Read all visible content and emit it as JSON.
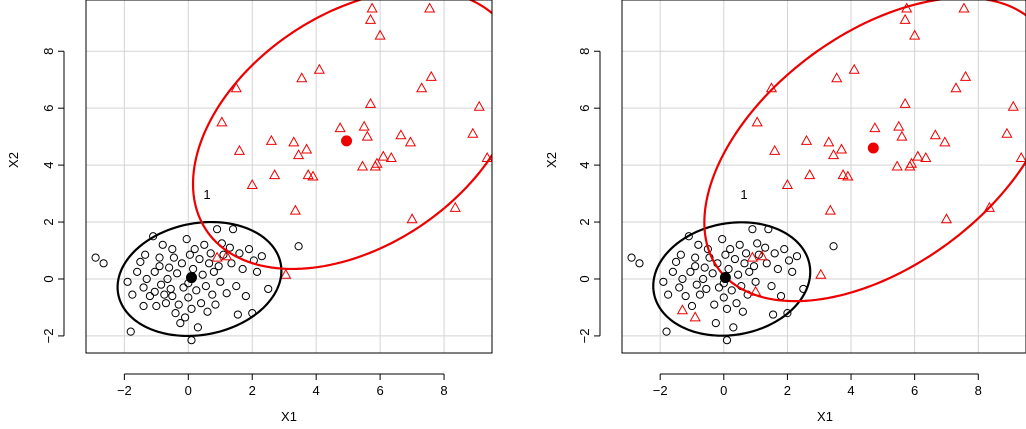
{
  "chart_data": [
    {
      "type": "scatter",
      "xlabel": "X1",
      "ylabel": "X2",
      "xlim": [
        -3.2,
        9.5
      ],
      "ylim": [
        -2.6,
        9.8
      ],
      "xticks": [
        -2,
        0,
        2,
        4,
        6,
        8
      ],
      "yticks": [
        -2,
        0,
        2,
        4,
        6,
        8
      ],
      "grid": true,
      "annotation": "1",
      "colors": {
        "cluster1": "#000000",
        "cluster2": "#ee0000",
        "grid": "#d3d3d3"
      },
      "centers": [
        {
          "x": 0.1,
          "y": 0.05,
          "color": "#000000"
        },
        {
          "x": 4.95,
          "y": 4.85,
          "color": "#ee0000"
        }
      ],
      "ellipses": [
        {
          "cx": 0.35,
          "cy": 0.0,
          "rx": 2.6,
          "ry": 1.95,
          "angle": 15,
          "color": "#000000"
        },
        {
          "cx": 5.25,
          "cy": 5.25,
          "rx": 5.9,
          "ry": 3.9,
          "angle": 42,
          "color": "#ee0000"
        }
      ],
      "series": [
        {
          "marker": "circle",
          "color": "#000000",
          "points": [
            [
              -2.9,
              0.75
            ],
            [
              -2.65,
              0.55
            ],
            [
              -1.9,
              -0.1
            ],
            [
              -1.8,
              -1.85
            ],
            [
              -1.75,
              -0.55
            ],
            [
              -1.6,
              0.25
            ],
            [
              -1.5,
              0.6
            ],
            [
              -1.4,
              -0.3
            ],
            [
              -1.4,
              -0.95
            ],
            [
              -1.35,
              0.85
            ],
            [
              -1.3,
              0.0
            ],
            [
              -1.2,
              -0.6
            ],
            [
              -1.1,
              1.5
            ],
            [
              -1.05,
              0.25
            ],
            [
              -1.05,
              -0.45
            ],
            [
              -1.0,
              -0.95
            ],
            [
              -0.9,
              0.75
            ],
            [
              -0.9,
              0.45
            ],
            [
              -0.85,
              -0.2
            ],
            [
              -0.8,
              1.2
            ],
            [
              -0.75,
              -0.55
            ],
            [
              -0.7,
              -0.85
            ],
            [
              -0.65,
              0.0
            ],
            [
              -0.6,
              0.4
            ],
            [
              -0.55,
              -0.35
            ],
            [
              -0.5,
              1.05
            ],
            [
              -0.5,
              -0.6
            ],
            [
              -0.45,
              0.75
            ],
            [
              -0.4,
              -1.2
            ],
            [
              -0.35,
              0.2
            ],
            [
              -0.3,
              -0.9
            ],
            [
              -0.25,
              -1.55
            ],
            [
              -0.2,
              0.55
            ],
            [
              -0.15,
              -0.3
            ],
            [
              -0.1,
              -1.35
            ],
            [
              -0.05,
              1.4
            ],
            [
              0.0,
              -0.15
            ],
            [
              0.0,
              -0.65
            ],
            [
              0.05,
              0.85
            ],
            [
              0.1,
              -2.15
            ],
            [
              0.1,
              -1.05
            ],
            [
              0.15,
              0.35
            ],
            [
              0.2,
              1.05
            ],
            [
              0.25,
              -0.4
            ],
            [
              0.3,
              -1.7
            ],
            [
              0.35,
              0.7
            ],
            [
              0.4,
              -0.85
            ],
            [
              0.45,
              0.15
            ],
            [
              0.5,
              1.2
            ],
            [
              0.55,
              -0.25
            ],
            [
              0.6,
              -1.15
            ],
            [
              0.65,
              0.55
            ],
            [
              0.7,
              0.9
            ],
            [
              0.75,
              -0.55
            ],
            [
              0.8,
              0.25
            ],
            [
              0.85,
              -0.9
            ],
            [
              0.9,
              1.75
            ],
            [
              0.95,
              0.45
            ],
            [
              1.0,
              -0.1
            ],
            [
              1.05,
              1.25
            ],
            [
              1.1,
              0.85
            ],
            [
              1.2,
              -0.5
            ],
            [
              1.3,
              1.1
            ],
            [
              1.35,
              0.55
            ],
            [
              1.4,
              1.75
            ],
            [
              1.5,
              -0.25
            ],
            [
              1.55,
              -1.25
            ],
            [
              1.6,
              0.9
            ],
            [
              1.7,
              0.35
            ],
            [
              1.8,
              -0.6
            ],
            [
              1.9,
              1.05
            ],
            [
              2.0,
              -1.2
            ],
            [
              2.05,
              0.65
            ],
            [
              2.15,
              0.25
            ],
            [
              2.3,
              0.8
            ],
            [
              2.5,
              -0.35
            ],
            [
              3.45,
              1.15
            ]
          ]
        },
        {
          "marker": "triangle",
          "color": "#ee0000",
          "points": [
            [
              0.9,
              0.75
            ],
            [
              1.2,
              0.8
            ],
            [
              1.05,
              5.5
            ],
            [
              1.5,
              6.7
            ],
            [
              1.6,
              4.5
            ],
            [
              2.0,
              3.3
            ],
            [
              2.6,
              4.85
            ],
            [
              2.7,
              3.65
            ],
            [
              3.05,
              0.15
            ],
            [
              3.3,
              4.8
            ],
            [
              3.35,
              2.4
            ],
            [
              3.45,
              4.35
            ],
            [
              3.55,
              7.05
            ],
            [
              3.7,
              4.55
            ],
            [
              3.75,
              3.65
            ],
            [
              3.9,
              3.6
            ],
            [
              4.1,
              7.35
            ],
            [
              4.75,
              5.3
            ],
            [
              5.45,
              3.95
            ],
            [
              5.5,
              5.35
            ],
            [
              5.6,
              5.0
            ],
            [
              5.7,
              6.15
            ],
            [
              5.7,
              9.1
            ],
            [
              5.75,
              9.5
            ],
            [
              5.85,
              3.95
            ],
            [
              5.9,
              4.05
            ],
            [
              6.0,
              8.55
            ],
            [
              6.1,
              4.3
            ],
            [
              6.35,
              4.25
            ],
            [
              6.65,
              5.05
            ],
            [
              6.95,
              4.8
            ],
            [
              7.0,
              2.1
            ],
            [
              7.3,
              6.7
            ],
            [
              7.55,
              9.5
            ],
            [
              7.6,
              7.1
            ],
            [
              8.35,
              2.5
            ],
            [
              8.9,
              5.1
            ],
            [
              9.1,
              6.05
            ],
            [
              9.35,
              4.25
            ]
          ]
        }
      ]
    },
    {
      "type": "scatter",
      "xlabel": "X1",
      "ylabel": "X2",
      "xlim": [
        -3.2,
        9.5
      ],
      "ylim": [
        -2.6,
        9.8
      ],
      "xticks": [
        -2,
        0,
        2,
        4,
        6,
        8
      ],
      "yticks": [
        -2,
        0,
        2,
        4,
        6,
        8
      ],
      "grid": true,
      "annotation": "1",
      "colors": {
        "cluster1": "#000000",
        "cluster2": "#ee0000",
        "grid": "#d3d3d3"
      },
      "centers": [
        {
          "x": 0.05,
          "y": 0.05,
          "color": "#000000"
        },
        {
          "x": 4.7,
          "y": 4.6,
          "color": "#ee0000"
        }
      ],
      "ellipses": [
        {
          "cx": 0.25,
          "cy": 0.0,
          "rx": 2.5,
          "ry": 1.95,
          "angle": 15,
          "color": "#000000"
        },
        {
          "cx": 4.9,
          "cy": 4.55,
          "rx": 6.6,
          "ry": 3.9,
          "angle": 43,
          "color": "#ee0000"
        }
      ],
      "series": [
        {
          "marker": "circle",
          "color": "#000000",
          "points": [
            [
              -2.9,
              0.75
            ],
            [
              -2.65,
              0.55
            ],
            [
              -1.9,
              -0.1
            ],
            [
              -1.8,
              -1.85
            ],
            [
              -1.75,
              -0.55
            ],
            [
              -1.6,
              0.25
            ],
            [
              -1.5,
              0.6
            ],
            [
              -1.4,
              -0.3
            ],
            [
              -1.35,
              0.85
            ],
            [
              -1.3,
              0.0
            ],
            [
              -1.2,
              -0.6
            ],
            [
              -1.1,
              1.5
            ],
            [
              -1.05,
              0.25
            ],
            [
              -1.0,
              -0.95
            ],
            [
              -0.9,
              0.75
            ],
            [
              -0.9,
              0.45
            ],
            [
              -0.85,
              -0.2
            ],
            [
              -0.8,
              1.2
            ],
            [
              -0.75,
              -0.55
            ],
            [
              -0.65,
              0.0
            ],
            [
              -0.6,
              0.4
            ],
            [
              -0.55,
              -0.35
            ],
            [
              -0.5,
              1.05
            ],
            [
              -0.45,
              0.75
            ],
            [
              -0.35,
              0.2
            ],
            [
              -0.3,
              -0.9
            ],
            [
              -0.25,
              -1.55
            ],
            [
              -0.2,
              0.55
            ],
            [
              -0.15,
              -0.3
            ],
            [
              -0.05,
              1.4
            ],
            [
              0.0,
              -0.15
            ],
            [
              0.0,
              -0.65
            ],
            [
              0.05,
              0.85
            ],
            [
              0.1,
              -2.15
            ],
            [
              0.1,
              -1.05
            ],
            [
              0.15,
              0.35
            ],
            [
              0.2,
              1.05
            ],
            [
              0.25,
              -0.4
            ],
            [
              0.3,
              -1.7
            ],
            [
              0.35,
              0.7
            ],
            [
              0.4,
              -0.85
            ],
            [
              0.45,
              0.15
            ],
            [
              0.5,
              1.2
            ],
            [
              0.55,
              -0.25
            ],
            [
              0.6,
              -1.15
            ],
            [
              0.65,
              0.55
            ],
            [
              0.7,
              0.9
            ],
            [
              0.75,
              -0.55
            ],
            [
              0.8,
              0.25
            ],
            [
              0.9,
              1.75
            ],
            [
              0.95,
              0.45
            ],
            [
              1.0,
              -0.1
            ],
            [
              1.05,
              1.25
            ],
            [
              1.1,
              0.85
            ],
            [
              1.3,
              1.1
            ],
            [
              1.35,
              0.55
            ],
            [
              1.4,
              1.75
            ],
            [
              1.5,
              -0.25
            ],
            [
              1.55,
              -1.25
            ],
            [
              1.6,
              0.9
            ],
            [
              1.7,
              0.35
            ],
            [
              1.8,
              -0.6
            ],
            [
              1.9,
              1.05
            ],
            [
              2.0,
              -1.2
            ],
            [
              2.05,
              0.65
            ],
            [
              2.15,
              0.25
            ],
            [
              2.3,
              0.8
            ],
            [
              2.5,
              -0.35
            ],
            [
              3.45,
              1.15
            ]
          ]
        },
        {
          "marker": "triangle",
          "color": "#ee0000",
          "points": [
            [
              -1.3,
              -1.1
            ],
            [
              -0.9,
              -1.35
            ],
            [
              0.9,
              0.75
            ],
            [
              1.0,
              -0.45
            ],
            [
              1.2,
              0.8
            ],
            [
              1.05,
              5.5
            ],
            [
              1.5,
              6.7
            ],
            [
              1.6,
              4.5
            ],
            [
              2.0,
              3.3
            ],
            [
              2.6,
              4.85
            ],
            [
              2.7,
              3.65
            ],
            [
              3.05,
              0.15
            ],
            [
              3.3,
              4.8
            ],
            [
              3.35,
              2.4
            ],
            [
              3.45,
              4.35
            ],
            [
              3.55,
              7.05
            ],
            [
              3.7,
              4.55
            ],
            [
              3.75,
              3.65
            ],
            [
              3.9,
              3.6
            ],
            [
              4.1,
              7.35
            ],
            [
              4.75,
              5.3
            ],
            [
              5.45,
              3.95
            ],
            [
              5.5,
              5.35
            ],
            [
              5.6,
              5.0
            ],
            [
              5.7,
              6.15
            ],
            [
              5.7,
              9.1
            ],
            [
              5.75,
              9.5
            ],
            [
              5.85,
              3.95
            ],
            [
              5.9,
              4.05
            ],
            [
              6.0,
              8.55
            ],
            [
              6.1,
              4.3
            ],
            [
              6.35,
              4.25
            ],
            [
              6.65,
              5.05
            ],
            [
              6.95,
              4.8
            ],
            [
              7.0,
              2.1
            ],
            [
              7.3,
              6.7
            ],
            [
              7.55,
              9.5
            ],
            [
              7.6,
              7.1
            ],
            [
              8.35,
              2.5
            ],
            [
              8.9,
              5.1
            ],
            [
              9.1,
              6.05
            ],
            [
              9.35,
              4.25
            ]
          ]
        }
      ]
    }
  ]
}
